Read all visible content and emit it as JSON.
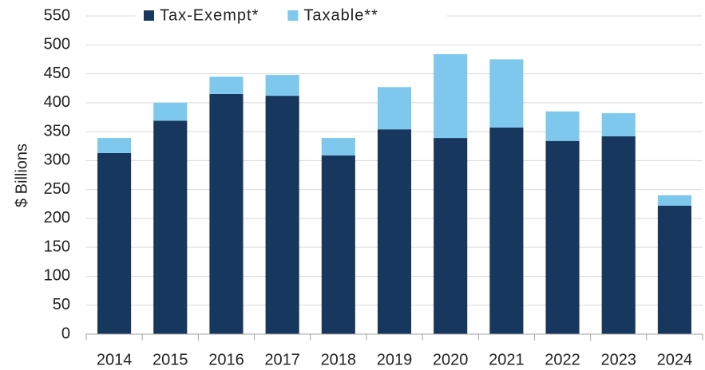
{
  "chart_data": {
    "type": "stacked_bar",
    "categories": [
      "2014",
      "2015",
      "2016",
      "2017",
      "2018",
      "2019",
      "2020",
      "2021",
      "2022",
      "2023",
      "2024"
    ],
    "series": [
      {
        "name": "Tax-Exempt*",
        "color": "#17375e",
        "values": [
          313,
          369,
          415,
          412,
          309,
          354,
          339,
          357,
          334,
          342,
          222
        ]
      },
      {
        "name": "Taxable**",
        "color": "#7ec8ee",
        "values": [
          26,
          31,
          30,
          36,
          30,
          73,
          145,
          118,
          51,
          40,
          18
        ]
      }
    ],
    "y_label": "$ Billions",
    "ylim": [
      0,
      550
    ],
    "yticks": [
      0,
      50,
      100,
      150,
      200,
      250,
      300,
      350,
      400,
      450,
      500,
      550
    ],
    "grid": true,
    "legend": "top"
  }
}
